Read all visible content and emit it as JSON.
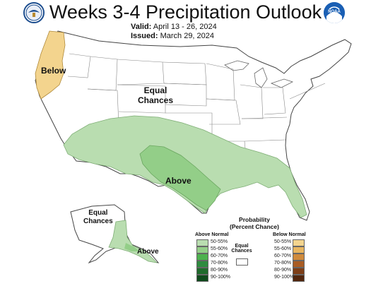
{
  "header": {
    "title": "Weeks 3-4 Precipitation Outlook",
    "valid_label": "Valid:",
    "valid_value": "April 13 - 26, 2024",
    "issued_label": "Issued:",
    "issued_value": "March 29, 2024",
    "noaa_text": "NOAA"
  },
  "map_labels": {
    "below": "Below",
    "equal_chances_line1": "Equal",
    "equal_chances_line2": "Chances",
    "above": "Above",
    "alaska_equal_line1": "Equal",
    "alaska_equal_line2": "Chances",
    "alaska_above": "Above"
  },
  "legend": {
    "title_line1": "Probability",
    "title_line2": "(Percent Chance)",
    "above_heading": "Above Normal",
    "below_heading": "Below Normal",
    "equal_line1": "Equal",
    "equal_line2": "Chances",
    "above": [
      {
        "label": "50-55%",
        "color": "#b9ddb0"
      },
      {
        "label": "55-60%",
        "color": "#93ce88"
      },
      {
        "label": "60-70%",
        "color": "#4db14e"
      },
      {
        "label": "70-80%",
        "color": "#2e8b3f"
      },
      {
        "label": "80-90%",
        "color": "#1f6b2c"
      },
      {
        "label": "90-100%",
        "color": "#0f4a1c"
      }
    ],
    "below": [
      {
        "label": "50-55%",
        "color": "#f3d48e"
      },
      {
        "label": "55-60%",
        "color": "#e8b660"
      },
      {
        "label": "60-70%",
        "color": "#cf8a3c"
      },
      {
        "label": "70-80%",
        "color": "#a95c24"
      },
      {
        "label": "80-90%",
        "color": "#7d3e17"
      },
      {
        "label": "90-100%",
        "color": "#52260d"
      }
    ]
  },
  "colors": {
    "above_50_55": "#b9ddb0",
    "above_55_60": "#93ce88",
    "below_50_55": "#f3d48e",
    "border": "#555555"
  }
}
